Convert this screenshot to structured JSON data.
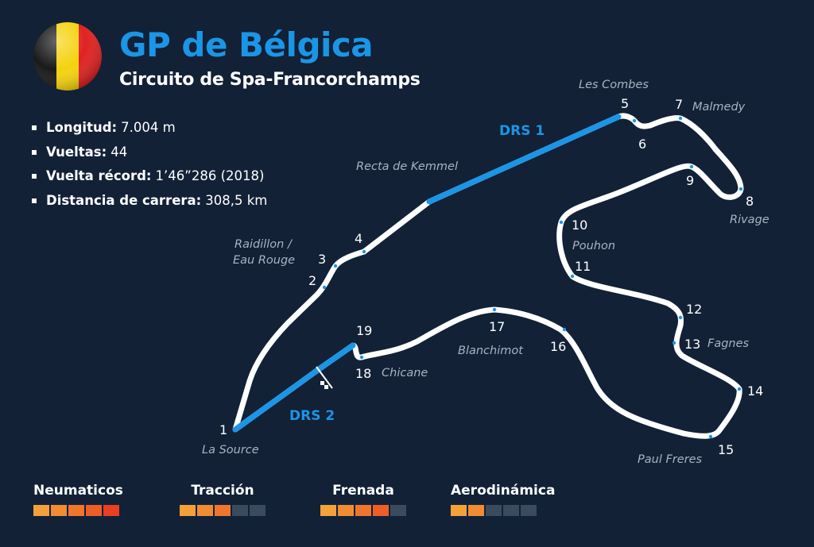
{
  "header": {
    "title": "GP de Bélgica",
    "subtitle": "Circuito de Spa-Francorchamps"
  },
  "flag": {
    "colors": [
      "#1a1a1a",
      "#f5d20e",
      "#e02222"
    ]
  },
  "stats": [
    {
      "label": "Longitud:",
      "value": "7.004 m"
    },
    {
      "label": "Vueltas:",
      "value": "44"
    },
    {
      "label": "Vuelta récord:",
      "value": "1’46”286 (2018)"
    },
    {
      "label": "Distancia de carrera:",
      "value": "308,5 km"
    }
  ],
  "track": {
    "line_color": "#ffffff",
    "drs_color": "#1b95e6",
    "drs_zones": [
      {
        "label": "DRS 1"
      },
      {
        "label": "DRS 2"
      }
    ],
    "turns": [
      {
        "number": "1",
        "name": "La Source"
      },
      {
        "number": "2",
        "name": ""
      },
      {
        "number": "3",
        "name": "Raidillon / Eau Rouge"
      },
      {
        "number": "4",
        "name": ""
      },
      {
        "number": "5",
        "name": "Les Combes"
      },
      {
        "number": "6",
        "name": ""
      },
      {
        "number": "7",
        "name": "Malmedy"
      },
      {
        "number": "8",
        "name": "Rivage"
      },
      {
        "number": "9",
        "name": ""
      },
      {
        "number": "10",
        "name": "Pouhon"
      },
      {
        "number": "11",
        "name": ""
      },
      {
        "number": "12",
        "name": ""
      },
      {
        "number": "13",
        "name": "Fagnes"
      },
      {
        "number": "14",
        "name": ""
      },
      {
        "number": "15",
        "name": "Paul Freres"
      },
      {
        "number": "16",
        "name": ""
      },
      {
        "number": "17",
        "name": "Blanchimot"
      },
      {
        "number": "18",
        "name": "Chicane"
      },
      {
        "number": "19",
        "name": ""
      }
    ],
    "raidillon_line1": "Raidillon /",
    "raidillon_line2": "Eau Rouge",
    "kemmel_label": "Recta de Kemmel"
  },
  "ratings": [
    {
      "label": "Neumaticos",
      "level": 5,
      "max": 5
    },
    {
      "label": "Tracción",
      "level": 3,
      "max": 5
    },
    {
      "label": "Frenada",
      "level": 4,
      "max": 5
    },
    {
      "label": "Aerodinámica",
      "level": 2,
      "max": 5
    }
  ],
  "rating_colors": {
    "filled": [
      "#f4a13a",
      "#f28c33",
      "#f0762d",
      "#ee5e27",
      "#ec3e22"
    ],
    "empty": "#3a4b5e"
  }
}
